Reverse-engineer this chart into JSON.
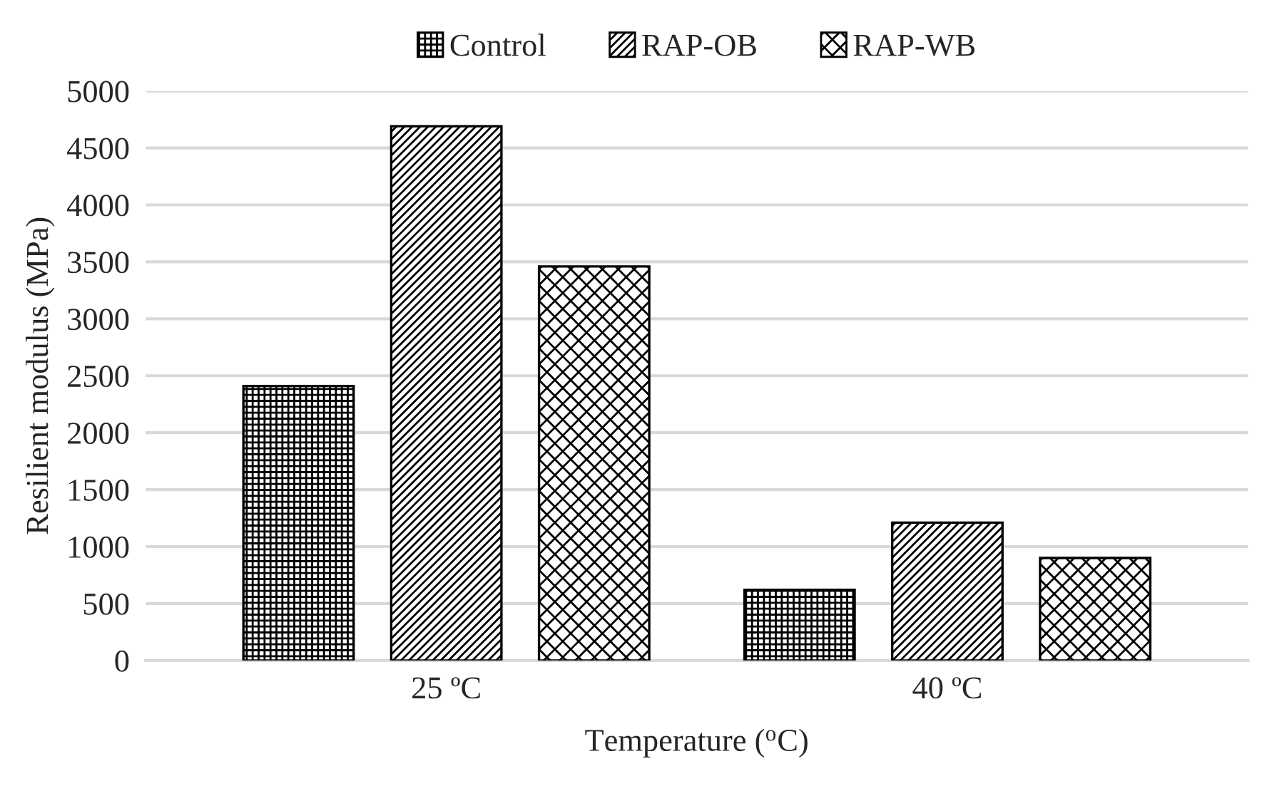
{
  "chart_data": {
    "type": "bar",
    "categories": [
      "25 ºC",
      "40 ºC"
    ],
    "series": [
      {
        "name": "Control",
        "color": "#000000",
        "values": [
          2410,
          620
        ]
      },
      {
        "name": "RAP-OB",
        "color": "#000000",
        "values": [
          4690,
          1210
        ]
      },
      {
        "name": "RAP-WB",
        "color": "#000000",
        "values": [
          3460,
          900
        ]
      }
    ],
    "xlabel": "Temperature ($^{o}$C)",
    "ylabel": "Resilient modulus (MPa)",
    "ylim": [
      0,
      5000
    ],
    "yticks": [
      0,
      500,
      1000,
      1500,
      2000,
      2500,
      3000,
      3500,
      4000,
      4500,
      5000
    ],
    "grid": "y",
    "legend": "top"
  }
}
